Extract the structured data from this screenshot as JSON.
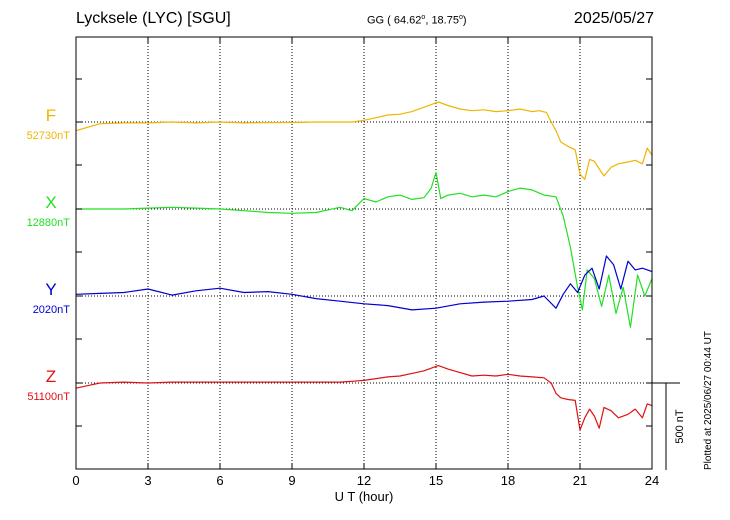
{
  "header": {
    "station": "Lycksele (LYC)  [SGU]",
    "coords_prefix": "GG ( 64.62",
    "coords_mid": ",  18.75",
    "coords_suffix": ")",
    "degree": "o",
    "date": "2025/05/27"
  },
  "plotted_note": "Plotted at 2025/06/27 00:44 UT",
  "chart_data": {
    "type": "line",
    "xlabel": "U T (hour)",
    "xlim": [
      0,
      24
    ],
    "xticks": [
      "0",
      "3",
      "6",
      "9",
      "12",
      "15",
      "18",
      "21",
      "24"
    ],
    "scale_bar": {
      "label": "500 nT",
      "value_nT": 500
    },
    "grid": true,
    "series": [
      {
        "name": "F",
        "baseline": "52730nT",
        "color": "#f0b400",
        "base_nT": 52730,
        "x": [
          0,
          0.5,
          1,
          2,
          3,
          4,
          5,
          6,
          7,
          8,
          9,
          10,
          11,
          11.5,
          12,
          12.5,
          13,
          13.5,
          14,
          14.5,
          14.8,
          15.1,
          15.5,
          16,
          16.5,
          17,
          17.5,
          18,
          18.5,
          19,
          19.3,
          19.6,
          19.8,
          20,
          20.2,
          20.5,
          20.8,
          21,
          21.2,
          21.4,
          21.6,
          21.8,
          22,
          22.3,
          22.6,
          23,
          23.3,
          23.6,
          23.8,
          24
        ],
        "values": [
          -50,
          -30,
          -10,
          -5,
          -5,
          0,
          -5,
          0,
          -5,
          -3,
          -3,
          0,
          0,
          0,
          10,
          25,
          40,
          45,
          60,
          85,
          100,
          115,
          95,
          75,
          65,
          70,
          60,
          65,
          75,
          60,
          65,
          55,
          0,
          -50,
          -115,
          -140,
          -160,
          -300,
          -330,
          -215,
          -225,
          -270,
          -310,
          -260,
          -240,
          -230,
          -220,
          -240,
          -150,
          -190
        ]
      },
      {
        "name": "X",
        "baseline": "12880nT",
        "color": "#22e022",
        "base_nT": 12880,
        "x": [
          0,
          1,
          2,
          3,
          4,
          5,
          6,
          7,
          8,
          9,
          10,
          10.5,
          11,
          11.5,
          12,
          12.5,
          13,
          13.5,
          14,
          14.5,
          14.8,
          15,
          15.2,
          15.5,
          16,
          16.5,
          17,
          17.5,
          18,
          18.5,
          19,
          19.5,
          20,
          20.3,
          20.6,
          20.9,
          21.1,
          21.3,
          21.6,
          21.9,
          22.2,
          22.5,
          22.8,
          23.1,
          23.4,
          23.7,
          24
        ],
        "values": [
          0,
          0,
          0,
          5,
          10,
          5,
          0,
          -10,
          -20,
          -25,
          -20,
          -5,
          10,
          -10,
          60,
          40,
          70,
          80,
          55,
          65,
          120,
          210,
          60,
          80,
          90,
          70,
          80,
          70,
          100,
          120,
          110,
          80,
          70,
          -40,
          -220,
          -450,
          -580,
          -350,
          -400,
          -560,
          -380,
          -600,
          -450,
          -680,
          -380,
          -500,
          -400
        ]
      },
      {
        "name": "Y",
        "baseline": "2020nT",
        "color": "#0000d0",
        "base_nT": 2020,
        "x": [
          0,
          1,
          2,
          3,
          4,
          5,
          6,
          7,
          8,
          9,
          10,
          11,
          12,
          13,
          14,
          15,
          16,
          17,
          18,
          19,
          19.5,
          20,
          20.3,
          20.6,
          20.9,
          21.2,
          21.5,
          21.8,
          22.1,
          22.4,
          22.7,
          23,
          23.3,
          23.6,
          24
        ],
        "values": [
          10,
          15,
          20,
          40,
          5,
          30,
          45,
          20,
          25,
          10,
          -15,
          -30,
          -45,
          -55,
          -80,
          -70,
          -45,
          -35,
          -30,
          -20,
          0,
          -70,
          10,
          70,
          20,
          120,
          160,
          40,
          230,
          180,
          40,
          200,
          150,
          160,
          140
        ]
      },
      {
        "name": "Z",
        "baseline": "51100nT",
        "color": "#e01010",
        "base_nT": 51100,
        "x": [
          0,
          0.5,
          1,
          2,
          3,
          4,
          5,
          6,
          7,
          8,
          9,
          10,
          11,
          11.5,
          12,
          12.5,
          13,
          13.5,
          14,
          14.5,
          14.8,
          15.1,
          15.5,
          16,
          16.5,
          17,
          17.5,
          18,
          18.5,
          19,
          19.5,
          19.8,
          20,
          20.2,
          20.5,
          20.8,
          21,
          21.2,
          21.4,
          21.6,
          21.8,
          22,
          22.3,
          22.6,
          23,
          23.3,
          23.6,
          23.8,
          24
        ],
        "values": [
          -30,
          -15,
          0,
          5,
          0,
          5,
          5,
          5,
          5,
          5,
          5,
          5,
          5,
          10,
          15,
          25,
          35,
          40,
          55,
          70,
          85,
          100,
          80,
          60,
          40,
          45,
          40,
          50,
          40,
          35,
          30,
          0,
          -60,
          -85,
          -95,
          -100,
          -270,
          -200,
          -150,
          -190,
          -260,
          -140,
          -160,
          -200,
          -180,
          -150,
          -200,
          -120,
          -130
        ]
      }
    ]
  }
}
